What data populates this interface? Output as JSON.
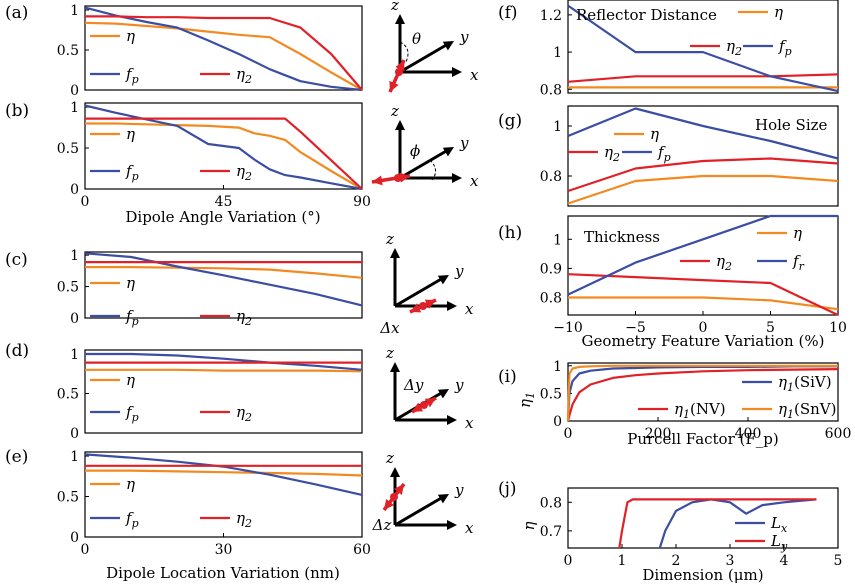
{
  "colors": {
    "orange": "#f28a22",
    "blue": "#3b4ea3",
    "red": "#e02128",
    "arrow_red": "#e02128"
  },
  "xlabels": {
    "angle": "Dipole Angle Variation (°)",
    "location": "Dipole Location Variation (nm)",
    "geometry": "Geometry Feature Variation (%)",
    "purcell": "Purcell Factor (F_p)",
    "dimension": "Dimension (μm)"
  },
  "diagram_labels": {
    "z": "z",
    "y": "y",
    "x": "x",
    "theta": "θ",
    "phi": "ϕ",
    "dx": "Δx",
    "dy": "Δy",
    "dz": "Δz"
  },
  "chart_data": [
    {
      "panel": "(a)",
      "type": "line",
      "x": [
        0,
        10,
        20,
        30,
        40,
        50,
        60,
        70,
        80,
        90
      ],
      "xlim": [
        0,
        90
      ],
      "ylim": [
        0,
        1.05
      ],
      "yticks": [
        0,
        0.5,
        1
      ],
      "xticks": [],
      "legend": [
        "η",
        "f_p",
        "η_2"
      ],
      "series": [
        {
          "name": "η",
          "color": "orange",
          "values": [
            0.84,
            0.83,
            0.8,
            0.77,
            0.73,
            0.69,
            0.66,
            0.45,
            0.22,
            0.0
          ]
        },
        {
          "name": "f_p",
          "color": "blue",
          "values": [
            1.03,
            0.93,
            0.85,
            0.78,
            0.62,
            0.45,
            0.26,
            0.11,
            0.04,
            0.0
          ]
        },
        {
          "name": "η_2",
          "color": "red",
          "values": [
            0.92,
            0.92,
            0.91,
            0.91,
            0.9,
            0.9,
            0.9,
            0.78,
            0.45,
            0.0
          ]
        }
      ]
    },
    {
      "panel": "(b)",
      "type": "line",
      "x": [
        0,
        10,
        20,
        30,
        40,
        50,
        55,
        60,
        65,
        70,
        80,
        90
      ],
      "xlim": [
        0,
        90
      ],
      "ylim": [
        0,
        1.05
      ],
      "yticks": [
        0,
        0.5,
        1
      ],
      "xticks": [
        0,
        45,
        90
      ],
      "legend": [
        "η",
        "f_p",
        "η_2"
      ],
      "series": [
        {
          "name": "η",
          "color": "orange",
          "values": [
            0.8,
            0.8,
            0.79,
            0.78,
            0.77,
            0.75,
            0.68,
            0.65,
            0.6,
            0.45,
            0.22,
            0.0
          ]
        },
        {
          "name": "f_p",
          "color": "blue",
          "values": [
            1.02,
            0.93,
            0.85,
            0.77,
            0.55,
            0.5,
            0.36,
            0.24,
            0.17,
            0.14,
            0.07,
            0.0
          ]
        },
        {
          "name": "η_2",
          "color": "red",
          "values": [
            0.86,
            0.86,
            0.86,
            0.86,
            0.86,
            0.86,
            0.86,
            0.86,
            0.86,
            0.7,
            0.35,
            0.0
          ]
        }
      ]
    },
    {
      "panel": "(c)",
      "type": "line",
      "x": [
        0,
        10,
        20,
        30,
        40,
        50,
        60
      ],
      "xlim": [
        0,
        60
      ],
      "ylim": [
        0,
        1.05
      ],
      "yticks": [
        0,
        0.5,
        1
      ],
      "xticks": [],
      "legend": [
        "η",
        "f_p",
        "η_2"
      ],
      "series": [
        {
          "name": "η",
          "color": "orange",
          "values": [
            0.81,
            0.81,
            0.8,
            0.79,
            0.77,
            0.71,
            0.64
          ]
        },
        {
          "name": "f_p",
          "color": "blue",
          "values": [
            1.03,
            0.97,
            0.82,
            0.68,
            0.53,
            0.38,
            0.2
          ]
        },
        {
          "name": "η_2",
          "color": "red",
          "values": [
            0.89,
            0.89,
            0.89,
            0.89,
            0.89,
            0.89,
            0.89
          ]
        }
      ]
    },
    {
      "panel": "(d)",
      "type": "line",
      "x": [
        0,
        10,
        20,
        30,
        40,
        50,
        60
      ],
      "xlim": [
        0,
        60
      ],
      "ylim": [
        0,
        1.05
      ],
      "yticks": [
        0,
        0.5,
        1
      ],
      "xticks": [],
      "legend": [
        "η",
        "f_p",
        "η_2"
      ],
      "series": [
        {
          "name": "η",
          "color": "orange",
          "values": [
            0.8,
            0.8,
            0.8,
            0.79,
            0.79,
            0.79,
            0.78
          ]
        },
        {
          "name": "f_p",
          "color": "blue",
          "values": [
            1.0,
            1.0,
            0.98,
            0.94,
            0.89,
            0.85,
            0.8
          ]
        },
        {
          "name": "η_2",
          "color": "red",
          "values": [
            0.89,
            0.89,
            0.89,
            0.89,
            0.89,
            0.89,
            0.89
          ]
        }
      ]
    },
    {
      "panel": "(e)",
      "type": "line",
      "x": [
        0,
        10,
        20,
        30,
        40,
        50,
        60
      ],
      "xlim": [
        0,
        60
      ],
      "ylim": [
        0,
        1.05
      ],
      "yticks": [
        0,
        0.5,
        1
      ],
      "xticks": [
        0,
        30,
        60
      ],
      "legend": [
        "η",
        "f_p",
        "η_2"
      ],
      "series": [
        {
          "name": "η",
          "color": "orange",
          "values": [
            0.82,
            0.82,
            0.81,
            0.8,
            0.79,
            0.78,
            0.76
          ]
        },
        {
          "name": "f_p",
          "color": "blue",
          "values": [
            1.02,
            0.98,
            0.93,
            0.87,
            0.77,
            0.65,
            0.52
          ]
        },
        {
          "name": "η_2",
          "color": "red",
          "values": [
            0.88,
            0.88,
            0.88,
            0.88,
            0.88,
            0.88,
            0.88
          ]
        }
      ]
    },
    {
      "panel": "(f)",
      "type": "line",
      "x": [
        -10,
        -5,
        0,
        5,
        10
      ],
      "xlim": [
        -10,
        10
      ],
      "ylim": [
        0.78,
        1.28
      ],
      "yticks": [
        0.8,
        1,
        1.2
      ],
      "xticks": [],
      "annotation": "Reflector Distance",
      "legend": [
        "η",
        "η_2",
        "f_p"
      ],
      "series": [
        {
          "name": "η",
          "color": "orange",
          "values": [
            0.81,
            0.81,
            0.81,
            0.81,
            0.81
          ]
        },
        {
          "name": "η_2",
          "color": "red",
          "values": [
            0.84,
            0.87,
            0.87,
            0.87,
            0.88
          ]
        },
        {
          "name": "f_p",
          "color": "blue",
          "values": [
            1.25,
            1.0,
            1.0,
            0.87,
            0.79
          ]
        }
      ]
    },
    {
      "panel": "(g)",
      "type": "line",
      "x": [
        -10,
        -5,
        0,
        5,
        10
      ],
      "xlim": [
        -10,
        10
      ],
      "ylim": [
        0.68,
        1.08
      ],
      "yticks": [
        0.8,
        1
      ],
      "xticks": [],
      "annotation": "Hole Size",
      "legend": [
        "η",
        "η_2",
        "f_p"
      ],
      "series": [
        {
          "name": "η",
          "color": "orange",
          "values": [
            0.69,
            0.78,
            0.8,
            0.8,
            0.78
          ]
        },
        {
          "name": "η_2",
          "color": "red",
          "values": [
            0.74,
            0.83,
            0.86,
            0.87,
            0.85
          ]
        },
        {
          "name": "f_p",
          "color": "blue",
          "values": [
            0.96,
            1.07,
            1.0,
            0.94,
            0.87
          ]
        }
      ]
    },
    {
      "panel": "(h)",
      "type": "line",
      "x": [
        -10,
        -5,
        0,
        5,
        10
      ],
      "xlim": [
        -10,
        10
      ],
      "ylim": [
        0.74,
        1.08
      ],
      "yticks": [
        0.8,
        0.9,
        1
      ],
      "xticks": [
        -10,
        -5,
        0,
        5,
        10
      ],
      "annotation": "Thickness",
      "legend": [
        "η",
        "η_2",
        "f_r"
      ],
      "series": [
        {
          "name": "η",
          "color": "orange",
          "values": [
            0.8,
            0.8,
            0.8,
            0.79,
            0.76
          ]
        },
        {
          "name": "η_2",
          "color": "red",
          "values": [
            0.88,
            0.87,
            0.86,
            0.85,
            0.74
          ]
        },
        {
          "name": "f_r",
          "color": "blue",
          "values": [
            0.81,
            0.92,
            1.0,
            1.08,
            1.08
          ]
        }
      ]
    },
    {
      "panel": "(i)",
      "type": "line",
      "x": [
        0,
        3,
        10,
        25,
        50,
        100,
        150,
        200,
        300,
        400,
        500,
        600
      ],
      "xlim": [
        0,
        600
      ],
      "ylim": [
        0,
        1.05
      ],
      "yticks": [
        0,
        0.5,
        1
      ],
      "xticks": [
        0,
        200,
        400,
        600
      ],
      "ylabel": "η_1",
      "legend": [
        "η_1(SiV)",
        "η_1(NV)",
        "η_1(SnV)"
      ],
      "series": [
        {
          "name": "η_1(SiV)",
          "color": "blue",
          "values": [
            0.0,
            0.5,
            0.72,
            0.86,
            0.91,
            0.95,
            0.96,
            0.97,
            0.98,
            0.98,
            0.99,
            0.99
          ]
        },
        {
          "name": "η_1(NV)",
          "color": "red",
          "values": [
            0.0,
            0.1,
            0.3,
            0.52,
            0.66,
            0.78,
            0.83,
            0.86,
            0.9,
            0.92,
            0.93,
            0.94
          ]
        },
        {
          "name": "η_1(SnV)",
          "color": "orange",
          "values": [
            0.0,
            0.85,
            0.95,
            0.98,
            0.99,
            1.0,
            1.0,
            1.0,
            1.0,
            1.0,
            1.0,
            1.0
          ]
        }
      ]
    },
    {
      "panel": "(j)",
      "type": "line",
      "xlim": [
        0,
        5
      ],
      "ylim": [
        0.64,
        0.85
      ],
      "yticks": [
        0.7,
        0.8
      ],
      "xticks": [
        0,
        1,
        2,
        3,
        4,
        5
      ],
      "ylabel": "η",
      "legend": [
        "L_x",
        "L_y"
      ],
      "series": [
        {
          "name": "L_x",
          "color": "blue",
          "x": [
            1.7,
            1.8,
            2.0,
            2.3,
            2.65,
            3.0,
            3.3,
            3.6,
            4.0,
            4.6
          ],
          "values": [
            0.64,
            0.7,
            0.77,
            0.8,
            0.81,
            0.8,
            0.76,
            0.79,
            0.8,
            0.81
          ]
        },
        {
          "name": "L_y",
          "color": "red",
          "x": [
            0.95,
            1.0,
            1.1,
            1.2,
            1.5,
            2.0,
            2.5,
            3.0,
            3.5,
            4.0,
            4.6
          ],
          "values": [
            0.64,
            0.7,
            0.8,
            0.81,
            0.81,
            0.81,
            0.81,
            0.81,
            0.81,
            0.81,
            0.81
          ]
        }
      ]
    }
  ]
}
